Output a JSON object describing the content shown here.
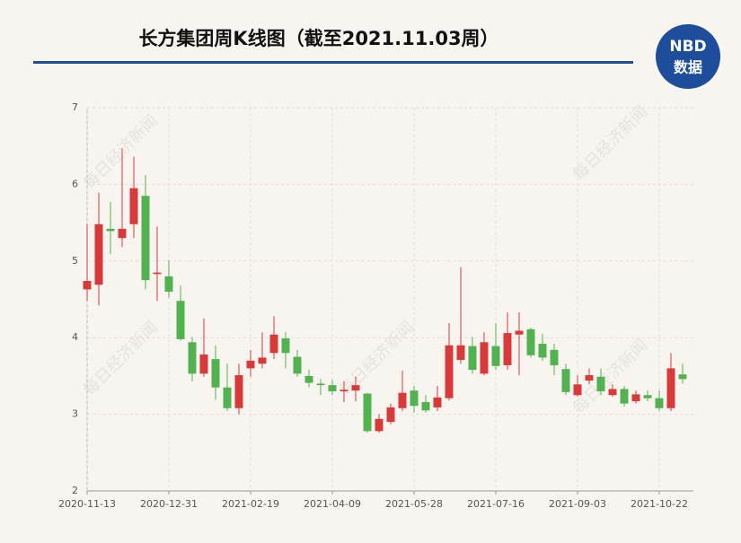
{
  "title": "长方集团周K线图（截至2021.11.03周）",
  "logo": {
    "top": "NBD",
    "bottom": "数据"
  },
  "watermark": "每日经济新闻",
  "chart_data": {
    "type": "candlestick",
    "categories": [
      "2020-11-13",
      null,
      null,
      null,
      null,
      null,
      null,
      "2020-12-31",
      null,
      null,
      null,
      null,
      null,
      null,
      "2021-02-19",
      null,
      null,
      null,
      null,
      null,
      null,
      "2021-04-09",
      null,
      null,
      null,
      null,
      null,
      null,
      "2021-05-28",
      null,
      null,
      null,
      null,
      null,
      null,
      "2021-07-16",
      null,
      null,
      null,
      null,
      null,
      null,
      "2021-09-03",
      null,
      null,
      null,
      null,
      null,
      null,
      "2021-10-22",
      null,
      null
    ],
    "open": [
      4.63,
      4.69,
      5.42,
      5.3,
      5.48,
      5.85,
      4.83,
      4.8,
      4.48,
      3.94,
      3.53,
      3.72,
      3.35,
      3.08,
      3.6,
      3.66,
      3.8,
      3.99,
      3.75,
      3.5,
      3.4,
      3.38,
      3.3,
      3.31,
      3.27,
      2.78,
      2.9,
      3.08,
      3.31,
      3.16,
      3.09,
      3.21,
      3.71,
      3.89,
      3.53,
      3.89,
      3.64,
      4.04,
      4.11,
      3.92,
      3.84,
      3.59,
      3.25,
      3.44,
      3.49,
      3.25,
      3.33,
      3.17,
      3.25,
      3.21,
      3.08,
      3.52
    ],
    "high": [
      5.48,
      5.89,
      5.77,
      6.47,
      6.36,
      6.12,
      5.45,
      5.01,
      4.68,
      4.01,
      4.25,
      3.9,
      3.66,
      3.66,
      3.84,
      4.07,
      4.28,
      4.07,
      3.84,
      3.58,
      3.46,
      3.45,
      3.43,
      3.49,
      3.28,
      3.0,
      3.14,
      3.57,
      3.37,
      3.25,
      3.37,
      4.19,
      4.92,
      4.01,
      4.07,
      4.19,
      4.33,
      4.33,
      4.13,
      4.05,
      3.92,
      3.66,
      3.51,
      3.6,
      3.6,
      3.39,
      3.37,
      3.31,
      3.31,
      3.31,
      3.8,
      3.66
    ],
    "low": [
      4.48,
      4.42,
      5.09,
      5.18,
      5.3,
      4.63,
      4.48,
      4.52,
      3.96,
      3.43,
      3.49,
      3.19,
      3.04,
      3.0,
      3.49,
      3.6,
      3.72,
      3.6,
      3.49,
      3.35,
      3.25,
      3.25,
      3.16,
      3.17,
      2.76,
      2.76,
      2.87,
      3.04,
      3.02,
      3.02,
      3.04,
      3.18,
      3.66,
      3.53,
      3.51,
      3.58,
      3.58,
      3.51,
      3.74,
      3.7,
      3.51,
      3.25,
      3.23,
      3.39,
      3.25,
      3.23,
      3.1,
      3.14,
      3.17,
      3.04,
      3.04,
      3.4
    ],
    "close": [
      4.74,
      5.48,
      5.39,
      5.42,
      5.95,
      4.75,
      4.85,
      4.6,
      3.98,
      3.53,
      3.78,
      3.35,
      3.08,
      3.51,
      3.7,
      3.74,
      4.04,
      3.8,
      3.53,
      3.41,
      3.38,
      3.3,
      3.32,
      3.38,
      2.78,
      2.94,
      3.09,
      3.28,
      3.11,
      3.05,
      3.22,
      3.9,
      3.9,
      3.58,
      3.94,
      3.63,
      4.06,
      4.09,
      3.77,
      3.74,
      3.64,
      3.29,
      3.39,
      3.51,
      3.3,
      3.33,
      3.14,
      3.26,
      3.21,
      3.08,
      3.6,
      3.46
    ],
    "up_color": "#d83a3a",
    "down_color": "#52b24f",
    "ylim": [
      2,
      7
    ],
    "yticks": [
      2,
      3,
      4,
      5,
      6,
      7
    ],
    "grid": true
  }
}
